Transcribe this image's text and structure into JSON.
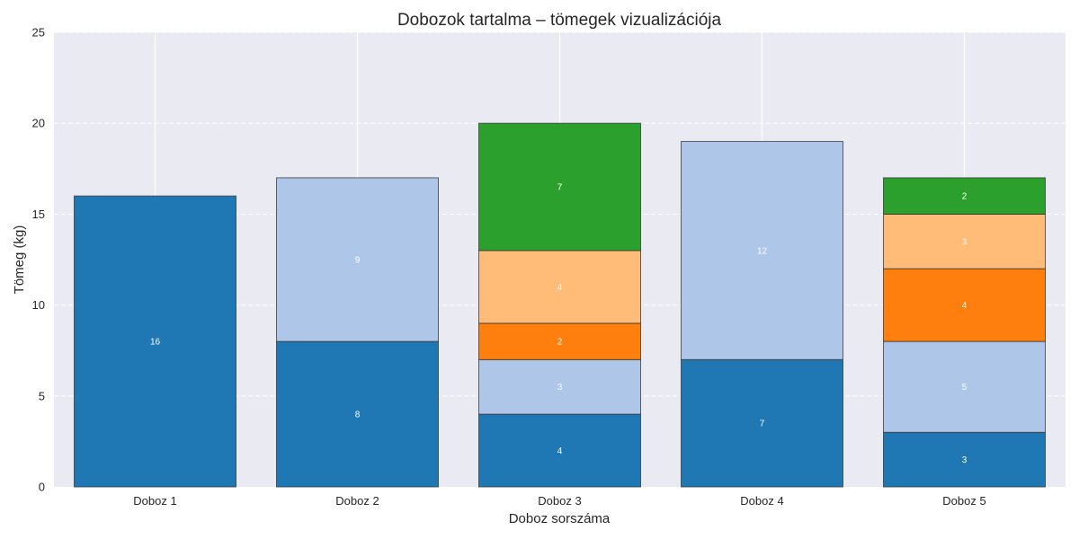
{
  "chart_data": {
    "type": "bar",
    "stacked": true,
    "title": "Dobozok tartalma – tömegek vizualizációja",
    "xlabel": "Doboz sorszáma",
    "ylabel": "Tömeg (kg)",
    "ylim": [
      0,
      25
    ],
    "yticks": [
      "0",
      "5",
      "10",
      "15",
      "20",
      "25"
    ],
    "grid": true,
    "background": "#EAEAF2",
    "categories": [
      "Doboz 1",
      "Doboz 2",
      "Doboz 3",
      "Doboz 4",
      "Doboz 5"
    ],
    "stacks": [
      [
        {
          "value": 16,
          "label": "16",
          "color": "#1F77B4"
        }
      ],
      [
        {
          "value": 8,
          "label": "8",
          "color": "#1F77B4"
        },
        {
          "value": 9,
          "label": "9",
          "color": "#AEC7E8"
        }
      ],
      [
        {
          "value": 4,
          "label": "4",
          "color": "#1F77B4"
        },
        {
          "value": 3,
          "label": "3",
          "color": "#AEC7E8"
        },
        {
          "value": 2,
          "label": "2",
          "color": "#FF7F0E"
        },
        {
          "value": 4,
          "label": "4",
          "color": "#FFBB78"
        },
        {
          "value": 7,
          "label": "7",
          "color": "#2CA02C"
        }
      ],
      [
        {
          "value": 7,
          "label": "7",
          "color": "#1F77B4"
        },
        {
          "value": 12,
          "label": "12",
          "color": "#AEC7E8"
        }
      ],
      [
        {
          "value": 3,
          "label": "3",
          "color": "#1F77B4"
        },
        {
          "value": 5,
          "label": "5",
          "color": "#AEC7E8"
        },
        {
          "value": 4,
          "label": "4",
          "color": "#FF7F0E"
        },
        {
          "value": 3,
          "label": "3",
          "color": "#FFBB78"
        },
        {
          "value": 2,
          "label": "2",
          "color": "#2CA02C"
        }
      ]
    ]
  }
}
